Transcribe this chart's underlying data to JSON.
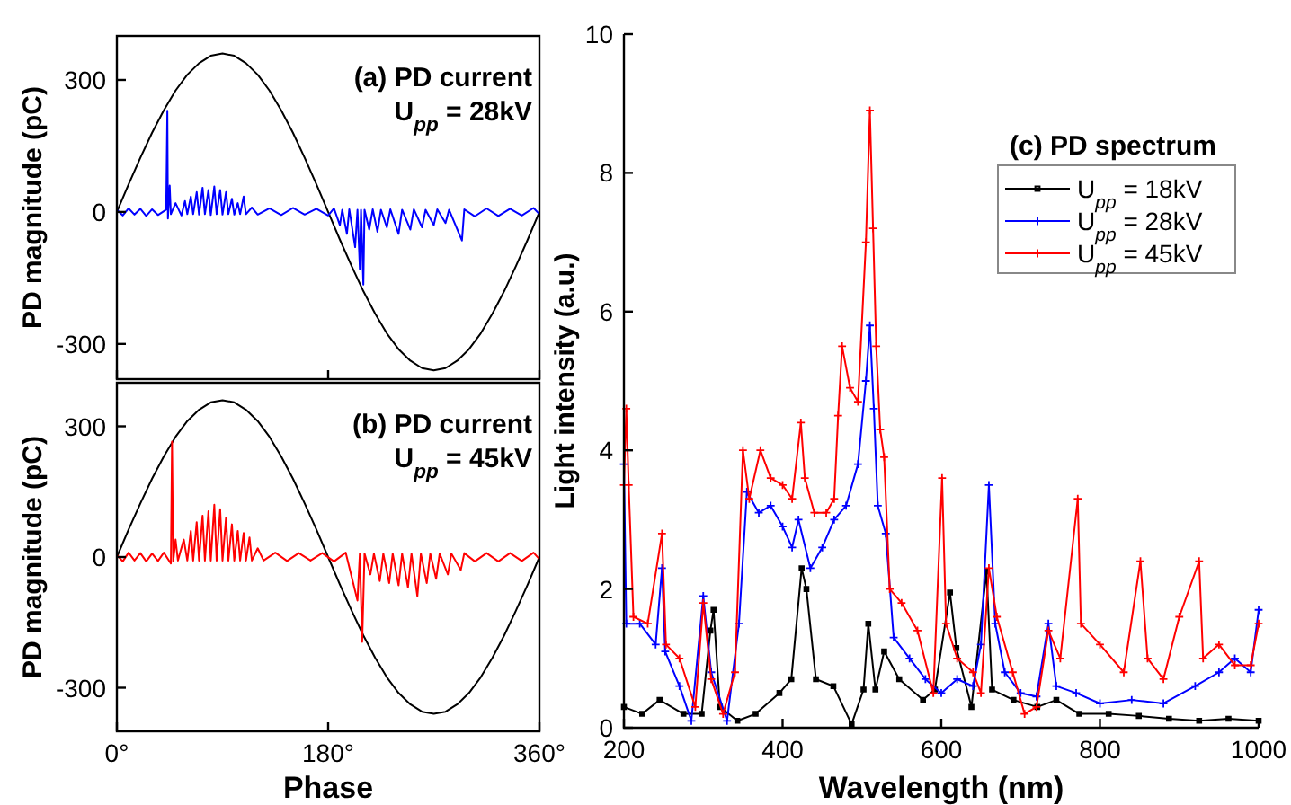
{
  "chart_data": [
    {
      "type": "line",
      "ylabel": "PD magnitude (pC)",
      "annotations": [
        "(a) PD current",
        "U$_{pp}$ = 28kV"
      ],
      "xlim": [
        0,
        360
      ],
      "ylim": [
        -380,
        400
      ],
      "xticks": [
        {
          "value": 0,
          "label": null
        },
        {
          "value": 180,
          "label": null
        },
        {
          "value": 360,
          "label": null
        }
      ],
      "yticks": [
        -300,
        0,
        300
      ],
      "tick_labels": "y",
      "legend": false,
      "series": [
        {
          "color": "#000000",
          "x": [
            0,
            10,
            20,
            30,
            40,
            50,
            60,
            70,
            80,
            90,
            100,
            110,
            120,
            130,
            140,
            150,
            160,
            170,
            180,
            190,
            200,
            210,
            220,
            230,
            240,
            250,
            260,
            270,
            280,
            290,
            300,
            310,
            320,
            330,
            340,
            350,
            360
          ],
          "values": [
            0,
            63,
            123,
            180,
            231,
            276,
            312,
            338,
            355,
            360,
            355,
            338,
            312,
            276,
            231,
            180,
            123,
            63,
            0,
            -63,
            -123,
            -180,
            -231,
            -276,
            -312,
            -338,
            -355,
            -360,
            -355,
            -338,
            -312,
            -276,
            -231,
            -180,
            -123,
            -63,
            0
          ]
        },
        {
          "color": "#0000ff",
          "x": [
            0,
            5,
            10,
            15,
            20,
            25,
            30,
            35,
            42,
            43,
            43.5,
            45,
            46,
            50,
            55,
            58,
            60,
            63,
            65,
            68,
            70,
            73,
            75,
            78,
            80,
            83,
            85,
            88,
            90,
            93,
            95,
            98,
            100,
            103,
            105,
            108,
            110,
            115,
            120,
            130,
            140,
            150,
            160,
            170,
            180,
            185,
            190,
            192,
            196,
            198,
            203,
            205,
            207,
            208,
            210,
            211,
            215,
            218,
            222,
            225,
            230,
            233,
            240,
            243,
            250,
            253,
            260,
            263,
            270,
            273,
            280,
            283,
            294,
            296,
            305,
            315,
            325,
            335,
            345,
            355,
            360
          ],
          "values": [
            5,
            -8,
            8,
            -6,
            7,
            -9,
            6,
            -7,
            5,
            230,
            -15,
            60,
            -5,
            20,
            -8,
            25,
            -5,
            35,
            -5,
            45,
            -6,
            55,
            -5,
            50,
            -7,
            58,
            -5,
            50,
            -6,
            45,
            -5,
            30,
            -6,
            20,
            -5,
            35,
            -5,
            10,
            -6,
            8,
            -7,
            9,
            -6,
            7,
            -8,
            8,
            -30,
            5,
            -50,
            6,
            -80,
            5,
            -130,
            5,
            -165,
            5,
            -40,
            6,
            -45,
            5,
            -35,
            6,
            -50,
            5,
            -40,
            6,
            -35,
            5,
            -30,
            6,
            -25,
            5,
            -65,
            6,
            -10,
            8,
            -9,
            7,
            -8,
            9,
            -5
          ]
        }
      ]
    },
    {
      "type": "line",
      "xlabel": "Phase",
      "ylabel": "PD magnitude (pC)",
      "annotations": [
        "(b) PD current",
        "U$_{pp}$ = 45kV"
      ],
      "xlim": [
        0,
        360
      ],
      "ylim": [
        -400,
        400
      ],
      "xticks": [
        {
          "value": 0,
          "label": "0°"
        },
        {
          "value": 180,
          "label": "180°"
        },
        {
          "value": 360,
          "label": "360°"
        }
      ],
      "yticks": [
        -300,
        0,
        300
      ],
      "legend": false,
      "series": [
        {
          "color": "#000000",
          "x": [
            0,
            10,
            20,
            30,
            40,
            50,
            60,
            70,
            80,
            90,
            100,
            110,
            120,
            130,
            140,
            150,
            160,
            170,
            180,
            190,
            200,
            210,
            220,
            230,
            240,
            250,
            260,
            270,
            280,
            290,
            300,
            310,
            320,
            330,
            340,
            350,
            360
          ],
          "values": [
            0,
            63,
            123,
            180,
            231,
            276,
            312,
            338,
            355,
            360,
            355,
            338,
            312,
            276,
            231,
            180,
            123,
            63,
            0,
            -63,
            -123,
            -180,
            -231,
            -276,
            -312,
            -338,
            -355,
            -360,
            -355,
            -338,
            -312,
            -276,
            -231,
            -180,
            -123,
            -63,
            0
          ]
        },
        {
          "color": "#ff0000",
          "x": [
            0,
            5,
            10,
            15,
            20,
            25,
            30,
            35,
            40,
            46,
            47,
            48,
            50,
            52,
            57,
            60,
            63,
            65,
            68,
            70,
            73,
            75,
            78,
            80,
            83,
            85,
            88,
            90,
            93,
            95,
            98,
            100,
            103,
            105,
            108,
            110,
            113,
            115,
            120,
            125,
            135,
            145,
            155,
            165,
            175,
            185,
            195,
            205,
            207,
            209,
            211,
            216,
            219,
            224,
            227,
            232,
            235,
            240,
            243,
            248,
            251,
            256,
            259,
            264,
            267,
            272,
            275,
            282,
            285,
            293,
            296,
            305,
            315,
            325,
            335,
            345,
            355,
            360
          ],
          "values": [
            5,
            -10,
            10,
            -8,
            9,
            -10,
            8,
            -9,
            10,
            -15,
            265,
            -10,
            40,
            -8,
            40,
            -8,
            60,
            -8,
            80,
            -8,
            95,
            -8,
            105,
            -8,
            120,
            -8,
            110,
            -8,
            90,
            -8,
            75,
            -8,
            60,
            -8,
            55,
            -8,
            45,
            -8,
            20,
            -8,
            10,
            -9,
            9,
            -8,
            9,
            -10,
            10,
            -100,
            8,
            -195,
            8,
            -40,
            8,
            -55,
            8,
            -60,
            8,
            -65,
            8,
            -70,
            8,
            -90,
            8,
            -60,
            8,
            -50,
            8,
            -40,
            8,
            -30,
            9,
            -10,
            9,
            -10,
            9,
            -9,
            10,
            -5
          ]
        }
      ]
    },
    {
      "type": "line",
      "xlabel": "Wavelength (nm)",
      "ylabel": "Light intensity (a.u.)",
      "legend_title": "(c) PD spectrum",
      "legend": "top right",
      "xlim": [
        200,
        1000
      ],
      "ylim": [
        0,
        10
      ],
      "xticks": [
        200,
        400,
        600,
        800,
        1000
      ],
      "yticks": [
        0,
        2,
        4,
        6,
        8,
        10
      ],
      "series": [
        {
          "name": "U$_{pp}$ = 18kV",
          "color": "#000000",
          "marker": "square",
          "x": [
            200,
            223,
            245,
            275,
            298,
            309,
            313,
            321,
            343,
            366,
            396,
            411,
            424,
            430,
            442,
            464,
            487,
            502,
            508,
            517,
            528,
            547,
            577,
            592,
            611,
            619,
            638,
            657,
            664,
            691,
            721,
            745,
            774,
            811,
            849,
            887,
            925,
            962,
            1000
          ],
          "values": [
            0.3,
            0.2,
            0.4,
            0.2,
            0.2,
            1.4,
            1.7,
            0.3,
            0.1,
            0.2,
            0.5,
            0.7,
            2.3,
            2.0,
            0.7,
            0.6,
            0.05,
            0.55,
            1.5,
            0.55,
            1.1,
            0.7,
            0.4,
            0.55,
            1.95,
            1.15,
            0.3,
            2.25,
            0.55,
            0.4,
            0.3,
            0.4,
            0.2,
            0.2,
            0.17,
            0.13,
            0.1,
            0.13,
            0.1
          ]
        },
        {
          "name": "U$_{pp}$ = 28kV",
          "color": "#0000ff",
          "marker": "cross",
          "x": [
            200,
            203,
            220,
            240,
            248,
            252,
            270,
            285,
            300,
            310,
            330,
            345,
            355,
            370,
            385,
            400,
            412,
            420,
            435,
            450,
            465,
            480,
            495,
            505,
            510,
            515,
            520,
            530,
            540,
            560,
            580,
            600,
            620,
            640,
            650,
            660,
            668,
            680,
            700,
            720,
            735,
            745,
            770,
            800,
            840,
            880,
            920,
            950,
            970,
            990,
            1000
          ],
          "values": [
            3.8,
            1.5,
            1.5,
            1.2,
            2.3,
            1.1,
            0.6,
            0.1,
            1.9,
            0.8,
            0.1,
            1.5,
            3.4,
            3.1,
            3.2,
            2.9,
            2.6,
            3.0,
            2.3,
            2.6,
            3.0,
            3.2,
            3.8,
            5.0,
            5.8,
            4.6,
            3.2,
            2.8,
            1.3,
            1.0,
            0.7,
            0.5,
            0.7,
            0.6,
            1.2,
            3.5,
            1.5,
            0.8,
            0.5,
            0.45,
            1.5,
            0.6,
            0.5,
            0.35,
            0.4,
            0.35,
            0.6,
            0.8,
            1.0,
            0.8,
            1.7
          ]
        },
        {
          "name": "U$_{pp}$ = 45kV",
          "color": "#ff0000",
          "marker": "cross",
          "x": [
            200,
            203,
            206,
            212,
            230,
            248,
            253,
            270,
            290,
            300,
            310,
            325,
            340,
            350,
            358,
            372,
            385,
            400,
            412,
            423,
            428,
            440,
            455,
            465,
            470,
            475,
            485,
            495,
            505,
            510,
            514,
            518,
            523,
            528,
            535,
            550,
            570,
            590,
            601,
            606,
            620,
            640,
            650,
            660,
            670,
            690,
            705,
            720,
            735,
            750,
            772,
            776,
            800,
            830,
            851,
            860,
            880,
            900,
            925,
            930,
            950,
            970,
            990,
            1000
          ],
          "values": [
            3.5,
            4.6,
            3.5,
            1.6,
            1.5,
            2.8,
            1.2,
            1.0,
            0.3,
            1.8,
            0.7,
            0.2,
            0.8,
            4.0,
            3.3,
            4.0,
            3.6,
            3.5,
            3.3,
            4.4,
            3.6,
            3.1,
            3.1,
            3.3,
            4.5,
            5.5,
            4.9,
            4.7,
            7.0,
            8.9,
            7.2,
            5.5,
            4.3,
            3.9,
            2.0,
            1.8,
            1.4,
            0.5,
            3.6,
            1.5,
            1.0,
            0.8,
            0.5,
            2.3,
            1.6,
            0.8,
            0.2,
            0.3,
            1.4,
            1.0,
            3.3,
            1.5,
            1.2,
            0.8,
            2.4,
            1.0,
            0.7,
            1.6,
            2.4,
            1.0,
            1.2,
            0.9,
            0.9,
            1.5
          ]
        }
      ]
    }
  ]
}
